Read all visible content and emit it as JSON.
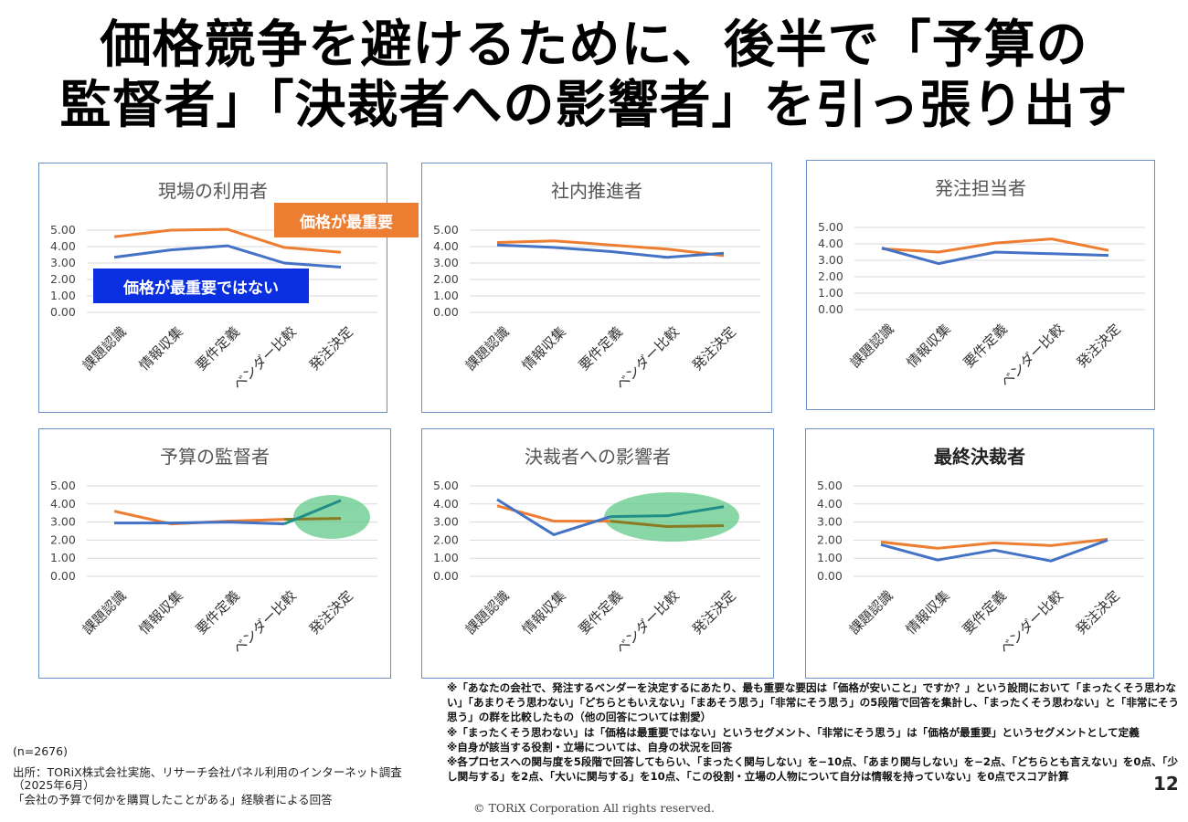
{
  "title": {
    "line1": "価格競争を避けるために、後半で「予算の",
    "line2": "監督者」「決裁者への影響者」を引っ張り出す"
  },
  "callouts": {
    "orange": "価格が最重要",
    "blue": "価格が最重要ではない"
  },
  "colors": {
    "price_important": "#ed7d31",
    "price_not_important": "#4472c4",
    "highlight_orange": "#8a7a22",
    "highlight_blue": "#1f8f85",
    "ellipse": "#62c98a"
  },
  "chart_data": [
    {
      "type": "line",
      "title": "現場の利用者",
      "categories": [
        "課題認識",
        "情報収集",
        "要件定義",
        "ベンダー比較",
        "発注決定"
      ],
      "y_ticks": [
        "5.00",
        "4.00",
        "3.00",
        "2.00",
        "1.00",
        "0.00"
      ],
      "ylim": [
        0,
        5
      ],
      "series": [
        {
          "name": "価格が最重要",
          "values": [
            4.6,
            5.0,
            5.05,
            3.95,
            3.65
          ]
        },
        {
          "name": "価格が最重要ではない",
          "values": [
            3.35,
            3.8,
            4.05,
            3.0,
            2.75
          ]
        }
      ]
    },
    {
      "type": "line",
      "title": "社内推進者",
      "categories": [
        "課題認識",
        "情報収集",
        "要件定義",
        "ベンダー比較",
        "発注決定"
      ],
      "y_ticks": [
        "5.00",
        "4.00",
        "3.00",
        "2.00",
        "1.00",
        "0.00"
      ],
      "ylim": [
        0,
        5
      ],
      "series": [
        {
          "values": [
            4.25,
            4.35,
            4.1,
            3.85,
            3.45
          ]
        },
        {
          "values": [
            4.1,
            3.95,
            3.7,
            3.35,
            3.6
          ]
        }
      ]
    },
    {
      "type": "line",
      "title": "発注担当者",
      "categories": [
        "課題認識",
        "情報収集",
        "要件定義",
        "ベンダー比較",
        "発注決定"
      ],
      "y_ticks": [
        "5.00",
        "4.00",
        "3.00",
        "2.00",
        "1.00",
        "0.00"
      ],
      "ylim": [
        0,
        5
      ],
      "series": [
        {
          "values": [
            3.7,
            3.5,
            4.05,
            4.3,
            3.6
          ]
        },
        {
          "values": [
            3.75,
            2.8,
            3.5,
            3.4,
            3.3
          ]
        }
      ]
    },
    {
      "type": "line",
      "title": "予算の監督者",
      "categories": [
        "課題認識",
        "情報収集",
        "要件定義",
        "ベンダー比較",
        "発注決定"
      ],
      "y_ticks": [
        "5.00",
        "4.00",
        "3.00",
        "2.00",
        "1.00",
        "0.00"
      ],
      "ylim": [
        0,
        5
      ],
      "series": [
        {
          "values": [
            3.6,
            2.9,
            3.05,
            3.15,
            3.2
          ]
        },
        {
          "values": [
            2.95,
            2.95,
            3.0,
            2.9,
            4.2
          ]
        }
      ]
    },
    {
      "type": "line",
      "title": "決裁者への影響者",
      "categories": [
        "課題認識",
        "情報収集",
        "要件定義",
        "ベンダー比較",
        "発注決定"
      ],
      "y_ticks": [
        "5.00",
        "4.00",
        "3.00",
        "2.00",
        "1.00",
        "0.00"
      ],
      "ylim": [
        0,
        5
      ],
      "series": [
        {
          "values": [
            3.9,
            3.05,
            3.05,
            2.75,
            2.8
          ]
        },
        {
          "values": [
            4.25,
            2.3,
            3.3,
            3.35,
            3.85
          ]
        }
      ]
    },
    {
      "type": "line",
      "title": "最終決裁者",
      "categories": [
        "課題認識",
        "情報収集",
        "要件定義",
        "ベンダー比較",
        "発注決定"
      ],
      "y_ticks": [
        "5.00",
        "4.00",
        "3.00",
        "2.00",
        "1.00",
        "0.00"
      ],
      "ylim": [
        0,
        5
      ],
      "series": [
        {
          "values": [
            1.9,
            1.55,
            1.85,
            1.7,
            2.05
          ]
        },
        {
          "values": [
            1.75,
            0.9,
            1.45,
            0.85,
            2.0
          ]
        }
      ]
    }
  ],
  "notes": [
    "※「あなたの会社で、発注するベンダーを決定するにあたり、最も重要な要因は「価格が安いこと」ですか？」という設問において「まったくそう思わない」「あまりそう思わない」「どちらともいえない」「まあそう思う」「非常にそう思う」の5段階で回答を集計し、「まったくそう思わない」と「非常にそう思う」の群を比較したもの（他の回答については割愛）",
    "※「まったくそう思わない」は「価格は最重要ではない」というセグメント、「非常にそう思う」は「価格が最重要」というセグメントとして定義",
    "※自身が該当する役割・立場については、自身の状況を回答",
    "※各プロセスへの関与度を5段階で回答してもらい、「まったく関与しない」を−10点、「あまり関与しない」を−2点、「どちらとも言えない」を0点、「少し関与する」を2点、「大いに関与する」を10点、「この役割・立場の人物について自分は情報を持っていない」を0点でスコア計算"
  ],
  "source": {
    "sample": "(n=2676)",
    "line1": "出所：TORiX株式会社実施、リサーチ会社パネル利用のインターネット調査",
    "line2": "（2025年6月）",
    "line3": "「会社の予算で何かを購買したことがある」経験者による回答"
  },
  "copyright": "© TORiX Corporation All rights reserved.",
  "page_number": "12"
}
